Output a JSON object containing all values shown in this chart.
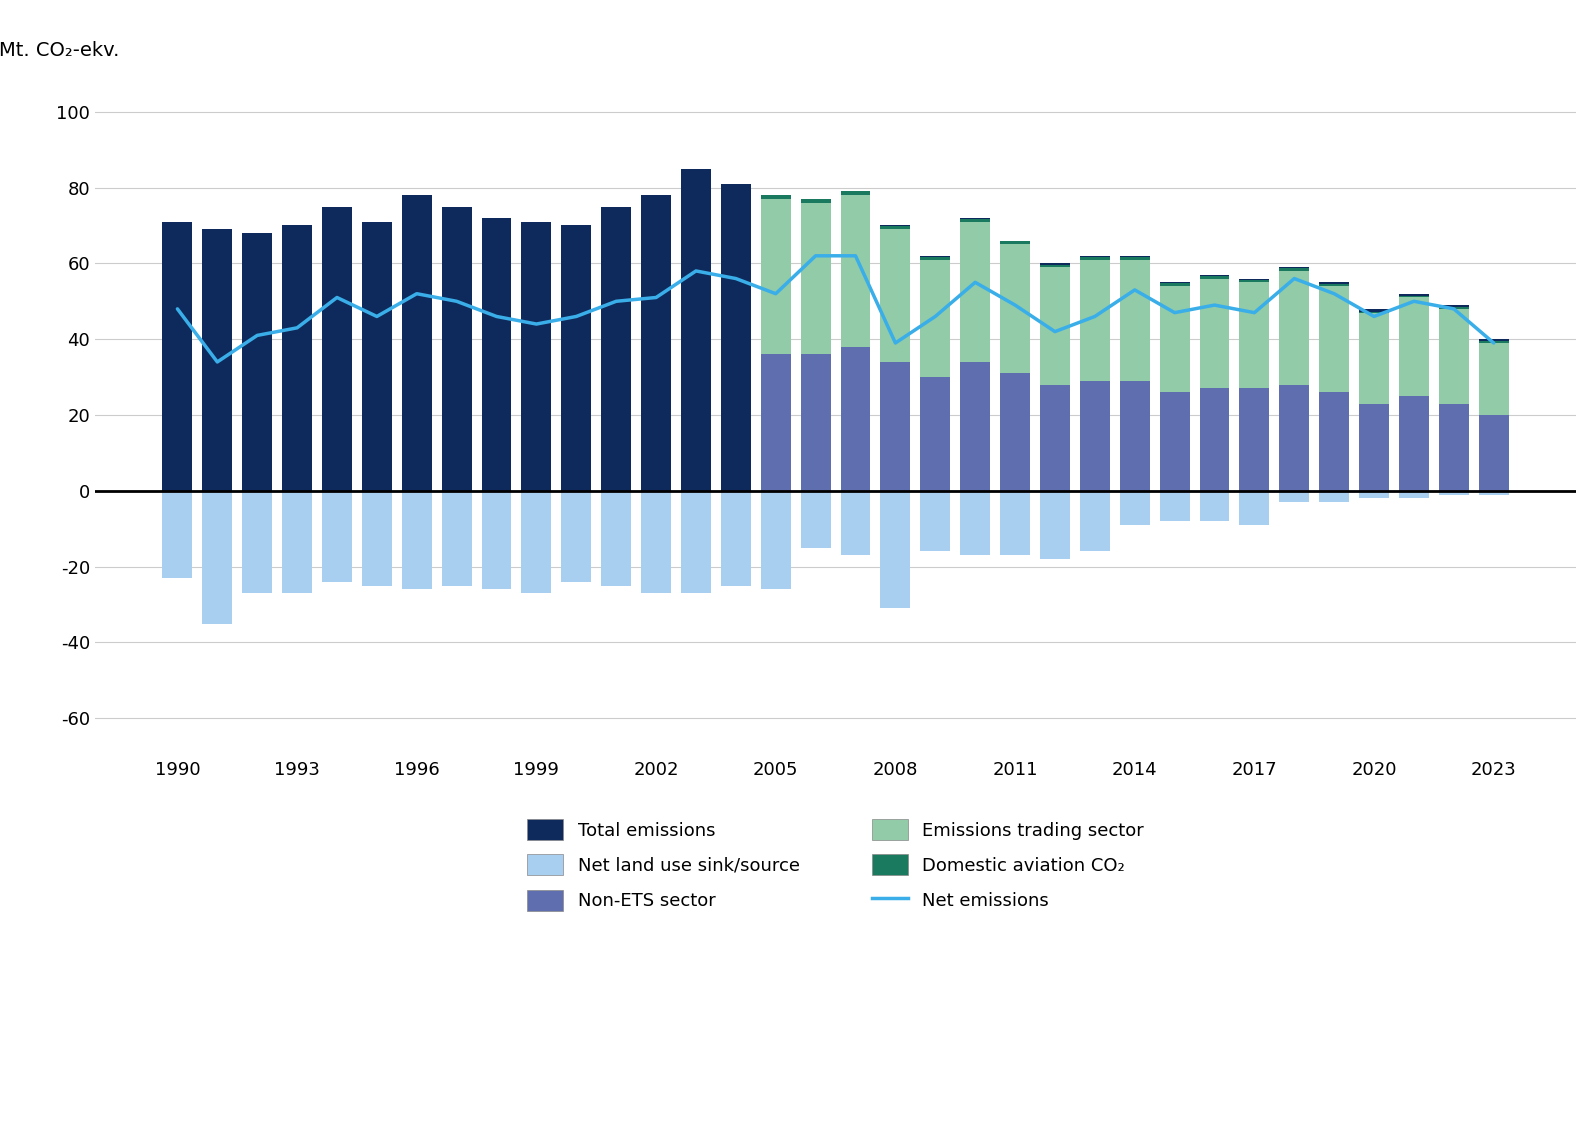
{
  "years": [
    1990,
    1991,
    1992,
    1993,
    1994,
    1995,
    1996,
    1997,
    1998,
    1999,
    2000,
    2001,
    2002,
    2003,
    2004,
    2005,
    2006,
    2007,
    2008,
    2009,
    2010,
    2011,
    2012,
    2013,
    2014,
    2015,
    2016,
    2017,
    2018,
    2019,
    2020,
    2021,
    2022,
    2023
  ],
  "total_emissions": [
    71,
    69,
    68,
    70,
    75,
    71,
    78,
    75,
    72,
    71,
    70,
    75,
    78,
    85,
    81,
    78,
    77,
    79,
    70,
    62,
    72,
    66,
    60,
    62,
    62,
    55,
    57,
    56,
    59,
    55,
    48,
    52,
    49,
    40
  ],
  "non_ets": [
    0,
    0,
    0,
    0,
    0,
    0,
    0,
    0,
    0,
    0,
    0,
    0,
    0,
    0,
    0,
    36,
    36,
    38,
    34,
    30,
    34,
    31,
    28,
    29,
    29,
    26,
    27,
    27,
    28,
    26,
    23,
    25,
    23,
    20
  ],
  "ets": [
    0,
    0,
    0,
    0,
    0,
    0,
    0,
    0,
    0,
    0,
    0,
    0,
    0,
    0,
    0,
    41,
    40,
    40,
    35,
    31,
    37,
    34,
    31,
    32,
    32,
    28,
    29,
    28,
    30,
    28,
    24,
    26,
    25,
    19
  ],
  "domestic_aviation": [
    0,
    0,
    0,
    0,
    0,
    0,
    0,
    0,
    0,
    0,
    0,
    0,
    0,
    0,
    0,
    1.0,
    1.0,
    1.0,
    0.8,
    0.6,
    0.8,
    0.8,
    0.7,
    0.7,
    0.7,
    0.7,
    0.7,
    0.7,
    0.7,
    0.5,
    0.3,
    0.4,
    0.5,
    0.5
  ],
  "land_use_sink": [
    -23,
    -35,
    -27,
    -27,
    -24,
    -25,
    -26,
    -25,
    -26,
    -27,
    -24,
    -25,
    -27,
    -27,
    -25,
    -26,
    -15,
    -17,
    -31,
    -16,
    -17,
    -17,
    -18,
    -16,
    -9,
    -8,
    -8,
    -9,
    -3,
    -3,
    -2,
    -2,
    -1,
    -1
  ],
  "net_emissions": [
    48,
    34,
    41,
    43,
    51,
    46,
    52,
    50,
    46,
    44,
    46,
    50,
    51,
    58,
    56,
    52,
    62,
    62,
    39,
    46,
    55,
    49,
    42,
    46,
    53,
    47,
    49,
    47,
    56,
    52,
    46,
    50,
    48,
    39
  ],
  "colors": {
    "total_emissions": "#0e2a5c",
    "non_ets": "#5f6eaf",
    "ets": "#92cba8",
    "domestic_aviation": "#1a7a60",
    "land_use_sink": "#a8cff0",
    "net_emissions_line": "#3aaee8"
  },
  "ylim": [
    -70,
    110
  ],
  "yticks": [
    -60,
    -40,
    -20,
    0,
    20,
    40,
    60,
    80,
    100
  ],
  "xtick_years": [
    1990,
    1993,
    1996,
    1999,
    2002,
    2005,
    2008,
    2011,
    2014,
    2017,
    2020,
    2023
  ],
  "ylabel": "Mt. CO₂-ekv.",
  "legend": {
    "total_emissions": "Total emissions",
    "non_ets": "Non-ETS sector",
    "domestic_aviation": "Domestic aviation CO₂",
    "land_use_sink": "Net land use sink/source",
    "ets": "Emissions trading sector",
    "net_emissions": "Net emissions"
  }
}
